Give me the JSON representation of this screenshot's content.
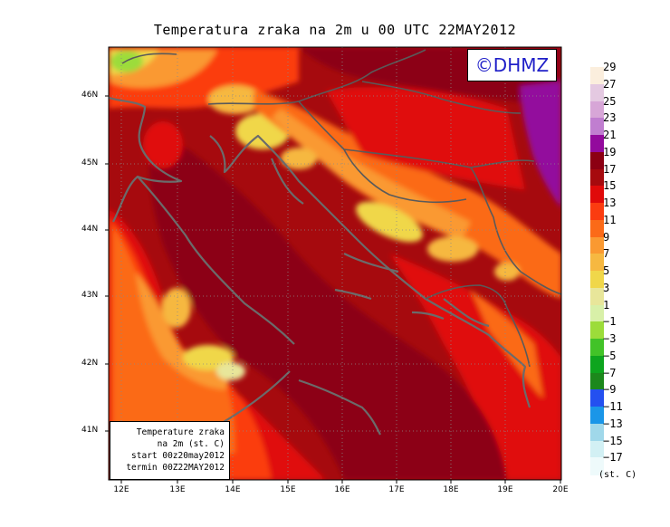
{
  "title": "Temperatura zraka na 2m u 00 UTC 22MAY2012",
  "brand": "©DHMZ",
  "infobox": {
    "line1": "Temperature zraka",
    "line2": "na 2m (st. C)",
    "line3": "start 00z20may2012",
    "line4": "termin 00Z22MAY2012"
  },
  "axes": {
    "lat_labels": [
      "46N",
      "45N",
      "44N",
      "43N",
      "42N",
      "41N"
    ],
    "lon_labels": [
      "12E",
      "13E",
      "14E",
      "15E",
      "16E",
      "17E",
      "18E",
      "19E",
      "20E"
    ]
  },
  "legend": {
    "unit": "(st. C)",
    "labels": [
      "29",
      "27",
      "25",
      "23",
      "21",
      "19",
      "17",
      "15",
      "13",
      "11",
      "9",
      "7",
      "5",
      "3",
      "1",
      "−1",
      "−3",
      "−5",
      "−7",
      "−9",
      "−11",
      "−13",
      "−15",
      "−17"
    ],
    "colors": [
      "#fbeedd",
      "#e4c9e1",
      "#d7a6d7",
      "#c07ed0",
      "#930a9d",
      "#8c0012",
      "#a60a0e",
      "#e00a0a",
      "#fb3c10",
      "#fb6a18",
      "#fa9931",
      "#f6b841",
      "#f0d74a",
      "#e8e69a",
      "#d8f0a8",
      "#9cdc3a",
      "#42c328",
      "#0ea51e",
      "#1c881c",
      "#2450f0",
      "#1a96e8",
      "#a0d8ea",
      "#d2f0f4",
      "#eefafb"
    ]
  }
}
